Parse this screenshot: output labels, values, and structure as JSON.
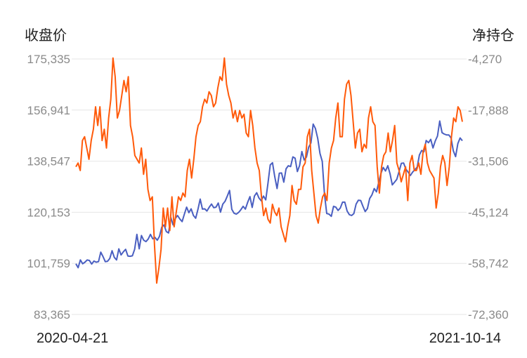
{
  "chart_data": {
    "type": "line",
    "left_axis_title": "收盘价",
    "right_axis_title": "净持仓",
    "x_start": "2020-04-21",
    "x_end": "2021-10-14",
    "grid": true,
    "left_ticks": [
      "175,335",
      "156,941",
      "138,547",
      "120,153",
      "101,759",
      "83,365"
    ],
    "right_ticks": [
      "-4,270",
      "-17,888",
      "-31,506",
      "-45,124",
      "-58,742",
      "-72,360"
    ],
    "left_range": [
      83365,
      175335
    ],
    "right_range": [
      -72360,
      -4270
    ],
    "series": [
      {
        "axis": "left",
        "color": "#4a5fc1",
        "values": [
          101600,
          100200,
          103000,
          101600,
          102200,
          103000,
          102800,
          101500,
          102600,
          102200,
          102400,
          105800,
          104200,
          102400,
          102500,
          103500,
          106300,
          103900,
          103000,
          107000,
          104800,
          105900,
          106800,
          104400,
          104300,
          104500,
          106800,
          112200,
          107000,
          111800,
          110100,
          109600,
          110500,
          112200,
          110600,
          111100,
          110100,
          111500,
          114800,
          115600,
          113200,
          112700,
          118300,
          115600,
          117900,
          119000,
          117700,
          116800,
          119500,
          122000,
          120000,
          121400,
          119000,
          118000,
          121200,
          124900,
          121300,
          121400,
          120600,
          122000,
          123100,
          121800,
          122000,
          123500,
          120200,
          123100,
          124100,
          126000,
          128000,
          121200,
          119800,
          119500,
          120100,
          121100,
          122300,
          121300,
          123700,
          125800,
          121900,
          126000,
          127200,
          125300,
          124300,
          126000,
          124600,
          130700,
          137200,
          138000,
          133000,
          128700,
          134200,
          134300,
          131000,
          135800,
          136900,
          136600,
          140100,
          139600,
          134800,
          137000,
          142000,
          139000,
          140000,
          143600,
          145100,
          151900,
          150300,
          146700,
          141300,
          138500,
          126600,
          119700,
          119500,
          118700,
          122300,
          122000,
          120800,
          121700,
          123800,
          123800,
          120600,
          119300,
          119000,
          119700,
          123100,
          124500,
          124400,
          122300,
          120400,
          121500,
          125100,
          126400,
          128700,
          127500,
          130900,
          134200,
          136300,
          135000,
          136900,
          134000,
          130000,
          131000,
          132000,
          134800,
          137800,
          137900,
          135700,
          134600,
          133400,
          134600,
          135500,
          136400,
          140800,
          142400,
          141900,
          146000,
          145200,
          146400,
          143300,
          145800,
          147600,
          153000,
          148800,
          148300,
          148000,
          148000,
          146900,
          142300,
          140200,
          144900,
          146900,
          145900
        ]
      },
      {
        "axis": "right",
        "color": "#ff5a0a",
        "values": [
          -33000,
          -32000,
          -34000,
          -26000,
          -25000,
          -28000,
          -31000,
          -26000,
          -23000,
          -17000,
          -22000,
          -17000,
          -26000,
          -23000,
          -28000,
          -20000,
          -15000,
          -4000,
          -9000,
          -20000,
          -18000,
          -14000,
          -10000,
          -13000,
          -9000,
          -22000,
          -25000,
          -30000,
          -31000,
          -32000,
          -28000,
          -35000,
          -31000,
          -39000,
          -42000,
          -41000,
          -54000,
          -64000,
          -60000,
          -55000,
          -44000,
          -49000,
          -44000,
          -50000,
          -41000,
          -49000,
          -45000,
          -41000,
          -42000,
          -40000,
          -41000,
          -34000,
          -31000,
          -36000,
          -31000,
          -25000,
          -22000,
          -21000,
          -17000,
          -15000,
          -16000,
          -13000,
          -14000,
          -17000,
          -16000,
          -12000,
          -9000,
          -10000,
          -4000,
          -11000,
          -14000,
          -16000,
          -20000,
          -18000,
          -21000,
          -18000,
          -20000,
          -19000,
          -24000,
          -25000,
          -18000,
          -22000,
          -28000,
          -32000,
          -34000,
          -41000,
          -46000,
          -44000,
          -47000,
          -48000,
          -43000,
          -45000,
          -46000,
          -44000,
          -49000,
          -51000,
          -53000,
          -49000,
          -46000,
          -38000,
          -42000,
          -43000,
          -39000,
          -39000,
          -33000,
          -32000,
          -25000,
          -23000,
          -34000,
          -40000,
          -46000,
          -48000,
          -44000,
          -41000,
          -40000,
          -42000,
          -32000,
          -28000,
          -26000,
          -20000,
          -16000,
          -25000,
          -25000,
          -15000,
          -11000,
          -10000,
          -14000,
          -21000,
          -28000,
          -24000,
          -23000,
          -29000,
          -27000,
          -28000,
          -20000,
          -17000,
          -21000,
          -22000,
          -33000,
          -40000,
          -33000,
          -30000,
          -29000,
          -24000,
          -29000,
          -26000,
          -22000,
          -32000,
          -34000,
          -37000,
          -35000,
          -33000,
          -42000,
          -32000,
          -30000,
          -34000,
          -34000,
          -32000,
          -35000,
          -29000,
          -27000,
          -32000,
          -34000,
          -35000,
          -36000,
          -44000,
          -40000,
          -33000,
          -30000,
          -32000,
          -38000,
          -33000,
          -25000,
          -20000,
          -21000,
          -17000,
          -18000,
          -21000
        ]
      }
    ]
  }
}
